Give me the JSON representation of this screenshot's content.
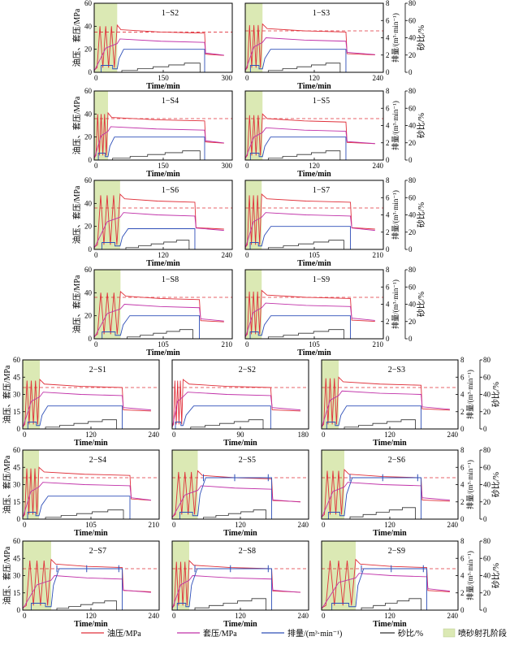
{
  "chart_data": {
    "type": "line",
    "colors": {
      "oil": "#e0303a",
      "casing": "#c030a8",
      "rate": "#2e4fb8",
      "sand": "#303030",
      "ref": "#e0303a",
      "band": "#dbe9b4"
    },
    "axis_text": {
      "xlabel": "Time/min",
      "ylabel_left": "油压、套压/MPa",
      "ylabel_rate": "排量/(m³·min⁻¹)",
      "ylabel_sand": "砂比/%"
    },
    "legend": [
      {
        "key": "oil",
        "label": "油压/MPa"
      },
      {
        "key": "casing",
        "label": "套压/MPa"
      },
      {
        "key": "rate",
        "label": "排量/(m³·min⁻¹)"
      },
      {
        "key": "sand",
        "label": "砂比/%"
      },
      {
        "key": "band",
        "label": "喷砂射孔阶段"
      }
    ],
    "left_ticks_a": [
      "0",
      "20",
      "40",
      "60"
    ],
    "left_ticks_b": [
      "0",
      "15",
      "30",
      "45",
      "60"
    ],
    "rate_ticks": [
      "0",
      "2",
      "4",
      "6",
      "8"
    ],
    "sand_ticks": [
      "0",
      "20",
      "40",
      "60",
      "80"
    ],
    "panels": [
      {
        "title": "1−S2",
        "xmax": 300,
        "xticks": [
          "0",
          "150",
          "300"
        ],
        "band": [
          0,
          50
        ],
        "end": 240,
        "oil": 35,
        "cas": 27,
        "rate": 20,
        "sand": 8,
        "ref": 35,
        "spikes": false
      },
      {
        "title": "1−S3",
        "xmax": 240,
        "xticks": [
          "0",
          "120",
          "240"
        ],
        "band": [
          0,
          30
        ],
        "end": 175,
        "oil": 36,
        "cas": 28,
        "rate": 20,
        "sand": 8,
        "ref": 36,
        "spikes": false
      },
      {
        "title": "1−S4",
        "xmax": 300,
        "xticks": [
          "0",
          "150",
          "300"
        ],
        "band": [
          0,
          30
        ],
        "end": 240,
        "oil": 35,
        "cas": 27,
        "rate": 20,
        "sand": 8,
        "ref": 36,
        "spikes": false
      },
      {
        "title": "1−S5",
        "xmax": 240,
        "xticks": [
          "0",
          "120",
          "240"
        ],
        "band": [
          0,
          30
        ],
        "end": 175,
        "oil": 34,
        "cas": 26,
        "rate": 20,
        "sand": 8,
        "ref": 36,
        "spikes": false
      },
      {
        "title": "1−S6",
        "xmax": 240,
        "xticks": [
          "0",
          "120",
          "240"
        ],
        "band": [
          0,
          45
        ],
        "end": 175,
        "oil": 42,
        "cas": 30,
        "rate": 18,
        "sand": 8,
        "ref": 36,
        "spikes": false
      },
      {
        "title": "1−S7",
        "xmax": 210,
        "xticks": [
          "0",
          "105",
          "210"
        ],
        "band": [
          0,
          25
        ],
        "end": 160,
        "oil": 42,
        "cas": 30,
        "rate": 20,
        "sand": 8,
        "ref": 36,
        "spikes": false
      },
      {
        "title": "1−S8",
        "xmax": 210,
        "xticks": [
          "0",
          "105",
          "210"
        ],
        "band": [
          0,
          40
        ],
        "end": 160,
        "oil": 35,
        "cas": 28,
        "rate": 20,
        "sand": 8,
        "ref": 36,
        "spikes": false
      },
      {
        "title": "1−S9",
        "xmax": 210,
        "xticks": [
          "0",
          "105",
          "210"
        ],
        "band": [
          0,
          25
        ],
        "end": 160,
        "oil": 36,
        "cas": 29,
        "rate": 20,
        "sand": 8,
        "ref": 36,
        "spikes": false
      },
      {
        "title": "2−S1",
        "xmax": 240,
        "xticks": [
          "0",
          "120",
          "240"
        ],
        "band": [
          0,
          30
        ],
        "end": 175,
        "oil": 37,
        "cas": 30,
        "rate": 20,
        "sand": 8,
        "ref": 36,
        "spikes": false
      },
      {
        "title": "2−S2",
        "xmax": 180,
        "xticks": [
          "0",
          "90",
          "180"
        ],
        "band": [
          0,
          0
        ],
        "end": 130,
        "oil": 37,
        "cas": 30,
        "rate": 20,
        "sand": 8,
        "ref": 36,
        "spikes": false
      },
      {
        "title": "2−S3",
        "xmax": 240,
        "xticks": [
          "0",
          "120",
          "240"
        ],
        "band": [
          0,
          30
        ],
        "end": 175,
        "oil": 39,
        "cas": 31,
        "rate": 20,
        "sand": 8,
        "ref": 36,
        "spikes": false
      },
      {
        "title": "2−S4",
        "xmax": 210,
        "xticks": [
          "0",
          "105",
          "210"
        ],
        "band": [
          0,
          25
        ],
        "end": 165,
        "oil": 39,
        "cas": 30,
        "rate": 20,
        "sand": 8,
        "ref": 36,
        "spikes": false
      },
      {
        "title": "2−S5",
        "xmax": 240,
        "xticks": [
          "0",
          "120",
          "240"
        ],
        "band": [
          0,
          45
        ],
        "end": 175,
        "oil": 36,
        "cas": 27,
        "rate": 36,
        "sand": 8,
        "ref": 36,
        "spikes": true
      },
      {
        "title": "2−S6",
        "xmax": 240,
        "xticks": [
          "0",
          "120",
          "240"
        ],
        "band": [
          0,
          40
        ],
        "end": 175,
        "oil": 37,
        "cas": 30,
        "rate": 36,
        "sand": 10,
        "ref": 36,
        "spikes": true
      },
      {
        "title": "2−S7",
        "xmax": 240,
        "xticks": [
          "0",
          "120",
          "240"
        ],
        "band": [
          0,
          50
        ],
        "end": 175,
        "oil": 38,
        "cas": 28,
        "rate": 36,
        "sand": 8,
        "ref": 36,
        "spikes": true
      },
      {
        "title": "2−S8",
        "xmax": 240,
        "xticks": [
          "0",
          "120",
          "240"
        ],
        "band": [
          0,
          30
        ],
        "end": 175,
        "oil": 37,
        "cas": 28,
        "rate": 36,
        "sand": 10,
        "ref": 36,
        "spikes": true
      },
      {
        "title": "2−S9",
        "xmax": 240,
        "xticks": [
          "0",
          "120",
          "240"
        ],
        "band": [
          0,
          60
        ],
        "end": 185,
        "oil": 38,
        "cas": 30,
        "rate": 36,
        "sand": 10,
        "ref": 36,
        "spikes": true
      }
    ]
  }
}
